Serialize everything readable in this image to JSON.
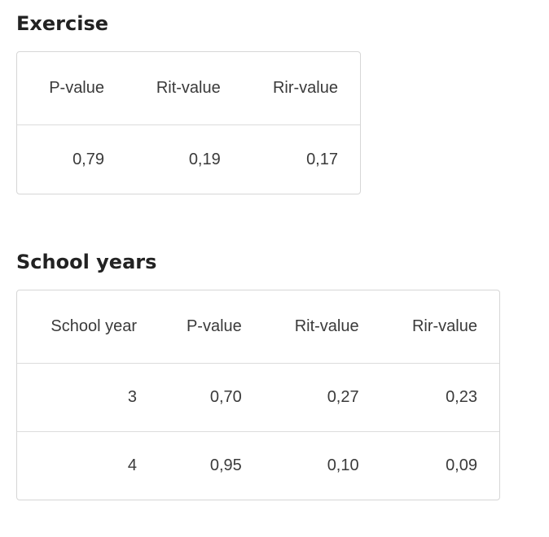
{
  "exercise": {
    "title": "Exercise",
    "headers": [
      "P-value",
      "Rit-value",
      "Rir-value"
    ],
    "row": [
      "0,79",
      "0,19",
      "0,17"
    ]
  },
  "school_years": {
    "title": "School years",
    "headers": [
      "School year",
      "P-value",
      "Rit-value",
      "Rir-value"
    ],
    "rows": [
      [
        "3",
        "0,70",
        "0,27",
        "0,23"
      ],
      [
        "4",
        "0,95",
        "0,10",
        "0,09"
      ]
    ]
  }
}
